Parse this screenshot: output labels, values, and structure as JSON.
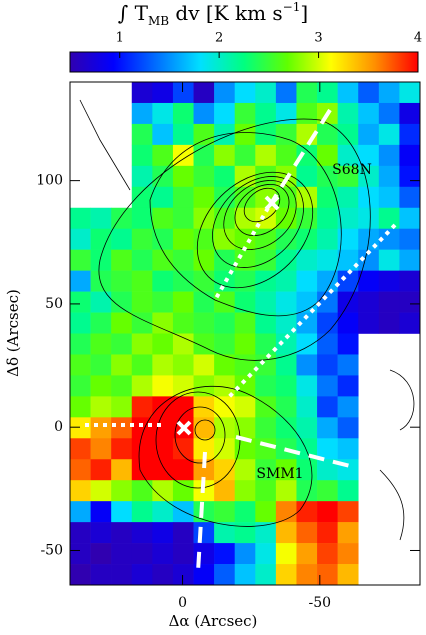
{
  "chart_data": {
    "type": "heatmap",
    "title_parts": [
      "∫ T",
      "MB",
      " dv [K km s",
      "−1",
      "]"
    ],
    "xlabel": "Δα (Arcsec)",
    "ylabel": "Δδ (Arcsec)",
    "annotations": [
      "S68N",
      "SMM1"
    ],
    "xlim": [
      41,
      -86.5
    ],
    "ylim": [
      -64,
      140
    ],
    "xticks": [
      0,
      -50
    ],
    "yticks": [
      -50,
      0,
      50,
      100
    ],
    "zlim": [
      0.5,
      4
    ],
    "zticks": [
      1,
      2,
      3,
      4
    ],
    "colormap": [
      "#3000b0",
      "#0000ff",
      "#0070ff",
      "#00e0ff",
      "#00ff80",
      "#60ff00",
      "#ffff00",
      "#ff9000",
      "#ff0000"
    ],
    "x_edges": [
      41,
      33.5,
      26,
      18.5,
      11,
      3.5,
      -4,
      -11.5,
      -19,
      -26.5,
      -34,
      -41.5,
      -49,
      -56.5,
      -64,
      -71.5,
      -79,
      -86.5
    ],
    "y_edges": [
      140,
      131.5,
      123,
      114.5,
      106,
      97.5,
      89,
      80.5,
      72,
      63.5,
      55,
      46.5,
      38,
      29.5,
      21,
      12.5,
      4,
      -4.5,
      -13,
      -21.5,
      -30,
      -38.5,
      -47,
      -55.5,
      -64
    ],
    "z": [
      [
        null,
        null,
        null,
        0.7,
        0.8,
        1.2,
        0.6,
        1.5,
        1.8,
        2.0,
        1.4,
        2.4,
        2.2,
        1.7,
        1.3,
        1.6,
        1.9
      ],
      [
        null,
        null,
        null,
        1.6,
        1.9,
        2.3,
        1.5,
        1.8,
        2.5,
        2.2,
        1.9,
        2.6,
        2.8,
        2.1,
        1.7,
        1.4,
        0.8
      ],
      [
        null,
        null,
        null,
        2.4,
        1.7,
        2.2,
        2.6,
        2.1,
        2.7,
        2.3,
        2.5,
        2.9,
        2.4,
        2.2,
        1.6,
        1.9,
        1.1
      ],
      [
        null,
        null,
        null,
        2.3,
        2.6,
        3.1,
        2.4,
        2.8,
        2.5,
        2.9,
        2.6,
        2.3,
        2.7,
        2.0,
        1.8,
        1.5,
        0.9
      ],
      [
        null,
        null,
        null,
        2.1,
        2.4,
        2.7,
        2.5,
        2.3,
        2.9,
        2.6,
        2.8,
        2.2,
        2.4,
        2.5,
        2.0,
        1.6,
        1.0
      ],
      [
        null,
        null,
        null,
        2.3,
        2.2,
        2.5,
        2.7,
        2.4,
        2.6,
        2.8,
        2.6,
        2.9,
        2.3,
        2.1,
        1.8,
        1.7,
        1.3
      ],
      [
        2.2,
        2.1,
        2.4,
        2.3,
        2.6,
        2.5,
        2.8,
        2.6,
        2.9,
        3.0,
        2.7,
        2.5,
        2.2,
        2.0,
        1.9,
        2.2,
        1.7
      ],
      [
        2.0,
        2.3,
        2.2,
        2.5,
        2.4,
        2.7,
        2.6,
        2.8,
        2.7,
        2.6,
        2.4,
        2.3,
        2.1,
        1.8,
        1.6,
        1.5,
        1.4
      ],
      [
        2.5,
        2.3,
        2.6,
        2.4,
        2.6,
        2.5,
        2.7,
        2.4,
        2.6,
        2.5,
        2.2,
        2.0,
        1.9,
        1.7,
        1.5,
        1.9,
        1.6
      ],
      [
        1.6,
        2.4,
        2.5,
        2.6,
        2.3,
        2.4,
        2.5,
        2.3,
        2.4,
        2.2,
        2.1,
        1.8,
        1.6,
        1.2,
        0.9,
        0.8,
        0.7
      ],
      [
        2.3,
        2.1,
        2.4,
        2.6,
        2.5,
        2.7,
        2.4,
        2.6,
        2.3,
        2.1,
        1.9,
        1.7,
        1.4,
        0.8,
        0.7,
        0.6,
        0.6
      ],
      [
        2.2,
        2.4,
        2.7,
        2.5,
        2.8,
        2.6,
        2.5,
        2.4,
        2.6,
        2.2,
        2.0,
        1.6,
        1.2,
        0.9,
        0.7,
        0.6,
        0.7
      ],
      [
        2.4,
        2.6,
        2.5,
        2.8,
        2.7,
        2.9,
        2.6,
        2.5,
        2.7,
        2.4,
        2.1,
        1.8,
        1.3,
        1.0,
        null,
        null,
        null
      ],
      [
        2.6,
        2.5,
        2.8,
        2.6,
        2.9,
        2.8,
        3.0,
        2.7,
        2.6,
        2.5,
        2.2,
        1.5,
        1.2,
        1.4,
        null,
        null,
        null
      ],
      [
        2.5,
        2.7,
        2.6,
        2.9,
        3.1,
        3.0,
        2.8,
        2.9,
        2.7,
        2.4,
        2.3,
        1.9,
        1.4,
        1.1,
        null,
        null,
        null
      ],
      [
        2.7,
        2.9,
        2.8,
        3.9,
        4.0,
        4.0,
        3.3,
        3.1,
        3.0,
        2.6,
        2.4,
        2.0,
        1.2,
        1.5,
        null,
        null,
        null
      ],
      [
        3.2,
        3.5,
        3.7,
        4.0,
        4.0,
        4.0,
        3.4,
        2.9,
        2.8,
        2.5,
        2.3,
        2.1,
        1.6,
        1.3,
        null,
        null,
        null
      ],
      [
        3.8,
        3.6,
        3.9,
        4.0,
        4.0,
        3.9,
        3.2,
        3.0,
        2.7,
        2.6,
        2.4,
        2.2,
        1.8,
        1.7,
        null,
        null,
        null
      ],
      [
        3.7,
        3.9,
        3.4,
        4.0,
        4.0,
        4.0,
        3.5,
        3.3,
        2.9,
        2.5,
        2.7,
        2.3,
        2.0,
        1.9,
        null,
        null,
        null
      ],
      [
        3.3,
        3.0,
        2.8,
        2.6,
        2.9,
        2.7,
        3.1,
        3.4,
        2.8,
        2.6,
        2.9,
        2.4,
        2.5,
        2.2,
        null,
        null,
        null
      ],
      [
        1.6,
        0.9,
        1.8,
        2.2,
        2.0,
        1.7,
        2.4,
        2.5,
        2.3,
        2.7,
        3.6,
        3.9,
        4.0,
        3.8,
        null,
        null,
        null
      ],
      [
        0.6,
        0.7,
        0.6,
        0.7,
        0.8,
        0.6,
        1.2,
        2.1,
        2.2,
        2.0,
        3.4,
        3.7,
        3.9,
        3.5,
        null,
        null,
        null
      ],
      [
        0.6,
        0.5,
        0.6,
        0.6,
        0.7,
        0.6,
        0.8,
        1.0,
        1.5,
        1.9,
        3.1,
        3.5,
        3.8,
        3.6,
        null,
        null,
        null
      ],
      [
        0.5,
        0.6,
        0.6,
        0.7,
        0.6,
        0.7,
        0.9,
        1.3,
        1.7,
        2.0,
        3.3,
        3.6,
        3.7,
        3.4,
        null,
        null,
        null
      ]
    ]
  }
}
